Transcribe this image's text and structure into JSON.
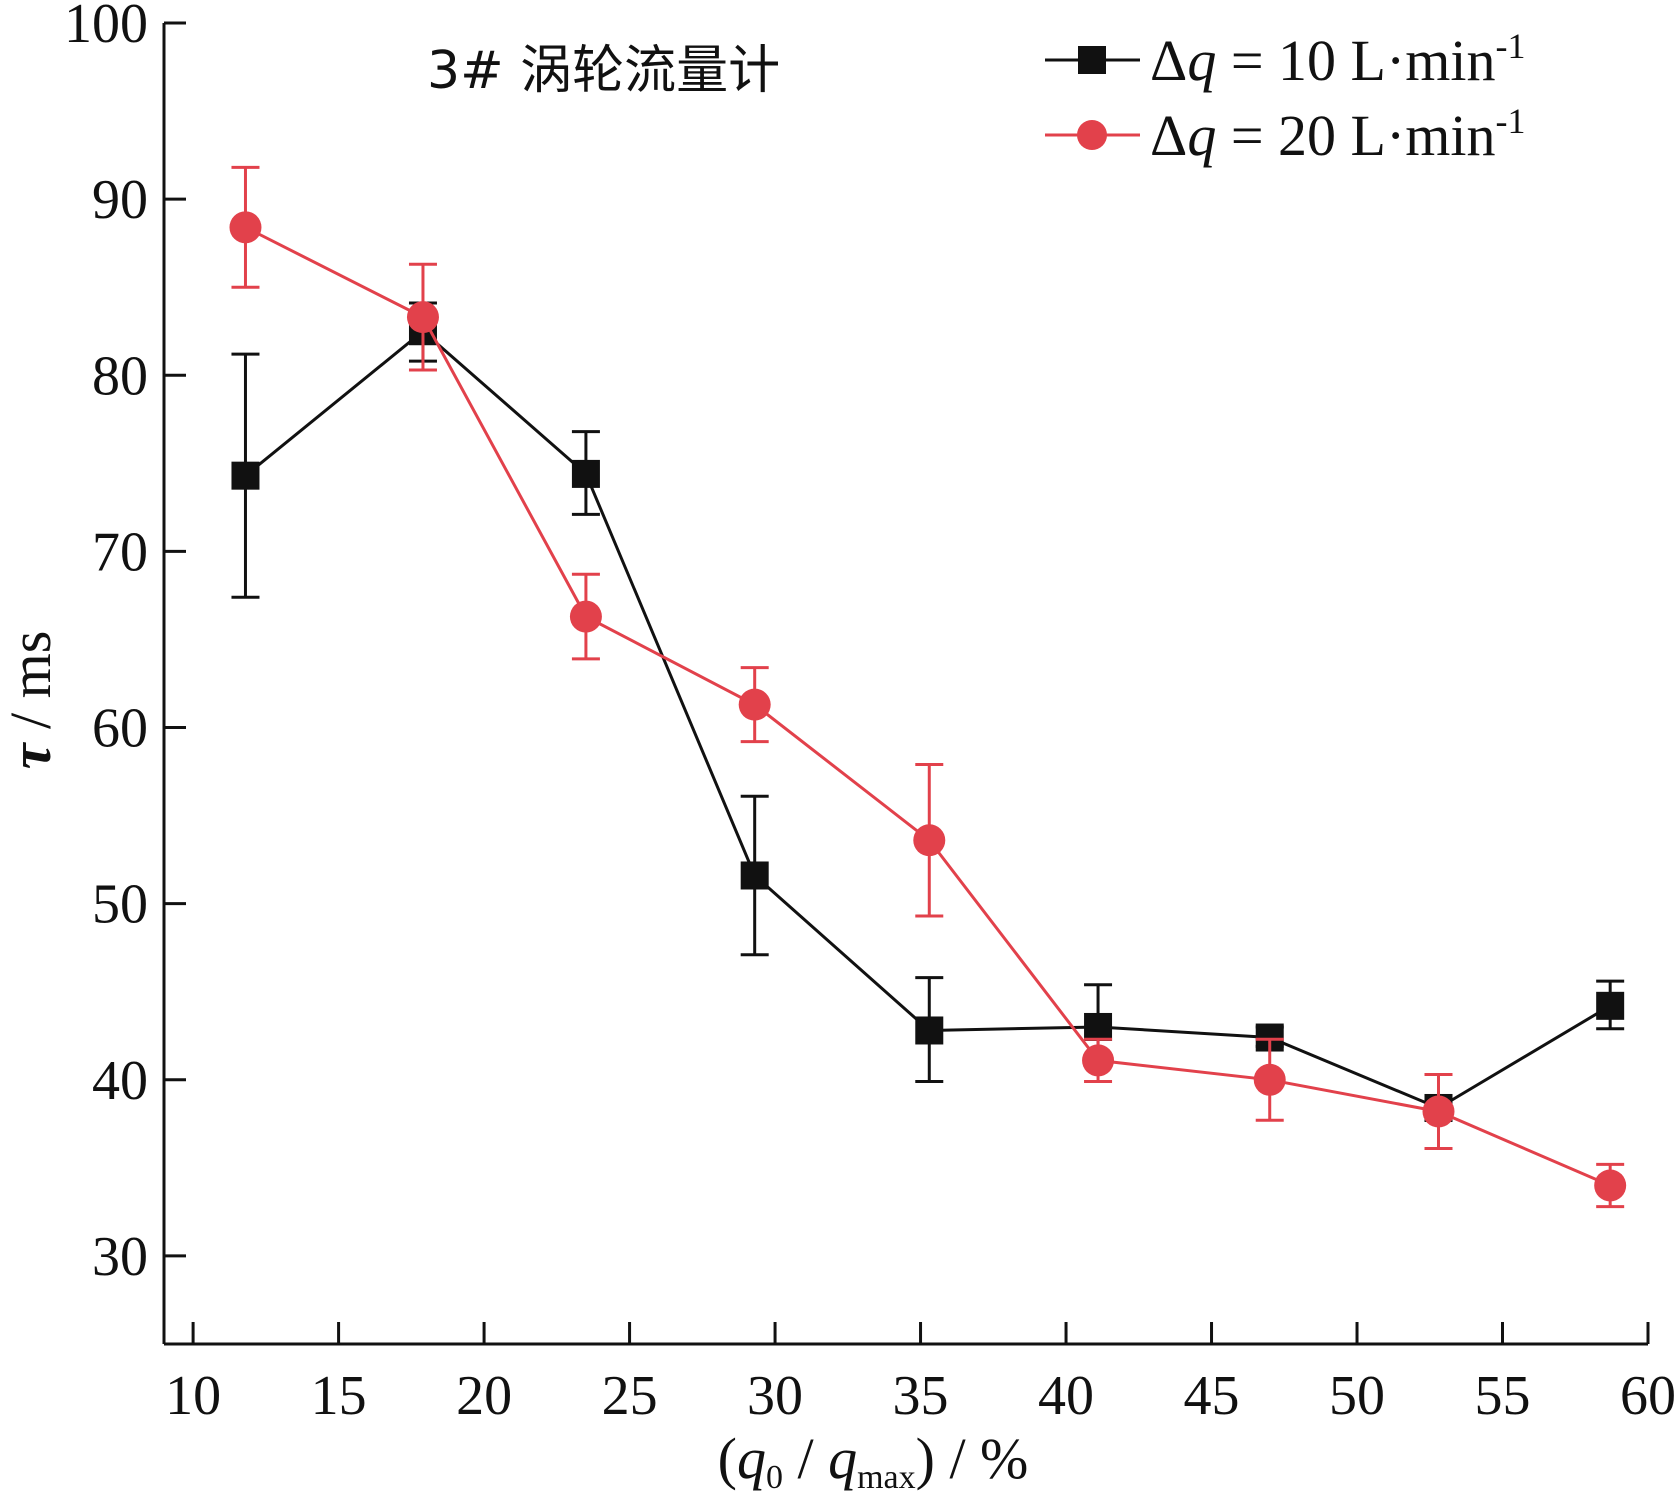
{
  "chart_data": {
    "type": "line",
    "title": "3# 涡轮流量计",
    "xlabel": {
      "open": "(",
      "q": "q",
      "q_sub": "0",
      "slash": " / ",
      "q2": "q",
      "q2_sub": "max",
      "close": ") / %"
    },
    "ylabel": {
      "symbol": "τ",
      "unit": " / ms"
    },
    "xlim": [
      9,
      60
    ],
    "ylim": [
      25,
      100
    ],
    "xticks": [
      10,
      15,
      20,
      25,
      30,
      35,
      40,
      45,
      50,
      55,
      60
    ],
    "xtick_labels": [
      "10",
      "15",
      "20",
      "25",
      "30",
      "35",
      "40",
      "45",
      "50",
      "55",
      "60"
    ],
    "yticks": [
      30,
      40,
      50,
      60,
      70,
      80,
      90,
      100
    ],
    "ytick_labels": [
      "30",
      "40",
      "50",
      "60",
      "70",
      "80",
      "90",
      "100"
    ],
    "grid": false,
    "legend_position": "top-right",
    "series": [
      {
        "name": "Δq = 10 L·min-1",
        "legend": {
          "delta": "Δ",
          "q": "q",
          "rest": " = 10 L·min",
          "sup": "-1"
        },
        "marker": "square",
        "color": "#111111",
        "x": [
          11.8,
          17.9,
          23.5,
          29.3,
          35.3,
          41.1,
          47.0,
          52.8,
          58.7
        ],
        "y": [
          74.3,
          82.5,
          74.4,
          51.6,
          42.8,
          43.0,
          42.4,
          38.4,
          44.2
        ],
        "err_low": [
          67.4,
          80.8,
          72.1,
          47.1,
          39.9,
          40.8,
          41.9,
          37.8,
          42.9
        ],
        "err_high": [
          81.2,
          84.1,
          76.8,
          56.1,
          45.8,
          45.4,
          43.0,
          38.9,
          45.6
        ]
      },
      {
        "name": "Δq = 20 L·min-1",
        "legend": {
          "delta": "Δ",
          "q": "q",
          "rest": " = 20 L·min",
          "sup": "-1"
        },
        "marker": "circle",
        "color": "#e2414b",
        "x": [
          11.8,
          17.9,
          23.5,
          29.3,
          35.3,
          41.1,
          47.0,
          52.8,
          58.7
        ],
        "y": [
          88.4,
          83.3,
          66.3,
          61.3,
          53.6,
          41.1,
          40.0,
          38.2,
          34.0
        ],
        "err_low": [
          85.0,
          80.3,
          63.9,
          59.2,
          49.3,
          39.9,
          37.7,
          36.1,
          32.8
        ],
        "err_high": [
          91.8,
          86.3,
          68.7,
          63.4,
          57.9,
          42.3,
          42.3,
          40.3,
          35.2
        ]
      }
    ]
  }
}
